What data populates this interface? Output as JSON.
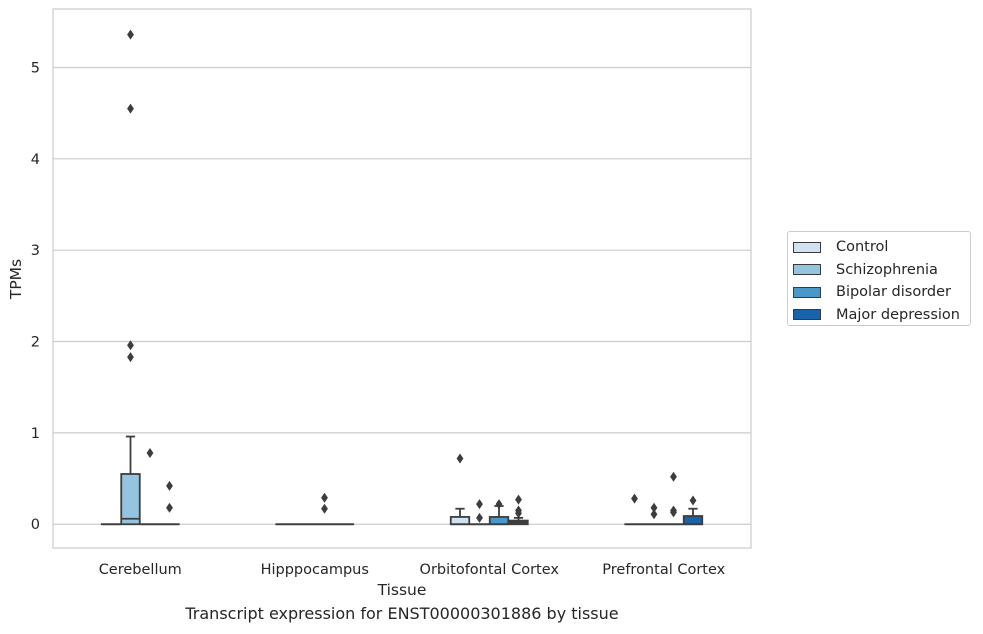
{
  "chart_data": {
    "type": "box",
    "caption": "Transcript expression for ENST00000301886 by tissue",
    "xlabel": "Tissue",
    "ylabel": "TPMs",
    "ylim": [
      -0.26,
      5.64
    ],
    "yticks": [
      0,
      1,
      2,
      3,
      4,
      5
    ],
    "grid": "horizontal",
    "legend_position": "right",
    "categories": [
      "Cerebellum",
      "Hipppocampus",
      "Orbitofontal Cortex",
      "Prefrontal Cortex"
    ],
    "series": [
      {
        "name": "Control",
        "color": "#d0e1f2",
        "boxes": [
          {
            "min": 0,
            "q1": 0,
            "median": 0,
            "q3": 0,
            "max": 0,
            "outliers": []
          },
          {
            "min": 0,
            "q1": 0,
            "median": 0,
            "q3": 0,
            "max": 0,
            "outliers": []
          },
          {
            "min": 0,
            "q1": 0,
            "median": 0,
            "q3": 0.08,
            "max": 0.17,
            "outliers": [
              0.72
            ]
          },
          {
            "min": 0,
            "q1": 0,
            "median": 0,
            "q3": 0,
            "max": 0,
            "outliers": [
              0.28
            ]
          }
        ]
      },
      {
        "name": "Schizophrenia",
        "color": "#94c4df",
        "boxes": [
          {
            "min": 0,
            "q1": 0,
            "median": 0.06,
            "q3": 0.55,
            "max": 0.96,
            "outliers": [
              1.96,
              1.83,
              4.55,
              5.36
            ]
          },
          {
            "min": 0,
            "q1": 0,
            "median": 0,
            "q3": 0,
            "max": 0,
            "outliers": []
          },
          {
            "min": 0,
            "q1": 0,
            "median": 0,
            "q3": 0,
            "max": 0,
            "outliers": [
              0.22,
              0.07
            ]
          },
          {
            "min": 0,
            "q1": 0,
            "median": 0,
            "q3": 0,
            "max": 0,
            "outliers": [
              0.18,
              0.11
            ]
          }
        ]
      },
      {
        "name": "Bipolar disorder",
        "color": "#4a98c9",
        "boxes": [
          {
            "min": 0,
            "q1": 0,
            "median": 0,
            "q3": 0,
            "max": 0,
            "outliers": [
              0.78
            ]
          },
          {
            "min": 0,
            "q1": 0,
            "median": 0,
            "q3": 0,
            "max": 0,
            "outliers": [
              0.29,
              0.17
            ]
          },
          {
            "min": 0,
            "q1": 0,
            "median": 0,
            "q3": 0.08,
            "max": 0.2,
            "outliers": [
              0.22
            ]
          },
          {
            "min": 0,
            "q1": 0,
            "median": 0,
            "q3": 0,
            "max": 0,
            "outliers": [
              0.52,
              0.15,
              0.13
            ]
          }
        ]
      },
      {
        "name": "Major depression",
        "color": "#1764ab",
        "boxes": [
          {
            "min": 0,
            "q1": 0,
            "median": 0,
            "q3": 0,
            "max": 0,
            "outliers": [
              0.42,
              0.18
            ]
          },
          {
            "min": 0,
            "q1": 0,
            "median": 0,
            "q3": 0,
            "max": 0,
            "outliers": []
          },
          {
            "min": 0,
            "q1": 0,
            "median": 0.02,
            "q3": 0.04,
            "max": 0.07,
            "outliers": [
              0.27,
              0.15,
              0.12
            ]
          },
          {
            "min": 0,
            "q1": 0,
            "median": 0,
            "q3": 0.09,
            "max": 0.17,
            "outliers": [
              0.26
            ]
          }
        ]
      }
    ]
  }
}
